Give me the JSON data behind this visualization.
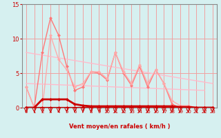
{
  "bg_color": "#d6f0f0",
  "grid_color": "#f0a0a0",
  "xlabel": "Vent moyen/en rafales ( km/h )",
  "xlim": [
    -0.5,
    23.5
  ],
  "ylim": [
    0,
    15
  ],
  "yticks": [
    0,
    5,
    10,
    15
  ],
  "xticks": [
    0,
    1,
    2,
    3,
    4,
    5,
    6,
    7,
    8,
    9,
    10,
    11,
    12,
    13,
    14,
    15,
    16,
    17,
    18,
    19,
    20,
    21,
    22,
    23
  ],
  "line_diag1": {
    "x": [
      0,
      23
    ],
    "y": [
      8.0,
      3.5
    ],
    "color": "#ffbbcc",
    "lw": 1.0
  },
  "line_diag2": {
    "x": [
      0,
      22
    ],
    "y": [
      3.5,
      2.5
    ],
    "color": "#ffbbcc",
    "lw": 1.0
  },
  "line_pink_zigzag": {
    "x": [
      0,
      1,
      2,
      3,
      4,
      5,
      6,
      7,
      8,
      9,
      10,
      11,
      12,
      13,
      14,
      15,
      16,
      17,
      18,
      19,
      20,
      21,
      22,
      23
    ],
    "y": [
      3.0,
      0,
      0,
      10.5,
      7,
      5.5,
      3.0,
      3.5,
      5.2,
      5.2,
      4.2,
      8.0,
      5.2,
      3.5,
      6.2,
      3.5,
      5.5,
      3.5,
      1.0,
      0.3,
      0.3,
      0,
      0,
      0
    ],
    "color": "#ffaaaa",
    "lw": 1.0,
    "ms": 2.5
  },
  "line_salmon_zigzag": {
    "x": [
      0,
      1,
      2,
      3,
      4,
      5,
      6,
      7,
      8,
      9,
      10,
      11,
      12,
      13,
      14,
      15,
      16,
      17,
      18,
      19,
      20,
      21,
      22,
      23
    ],
    "y": [
      3.0,
      0,
      8.0,
      13.0,
      10.5,
      6.0,
      2.5,
      3.0,
      5.2,
      5.0,
      4.0,
      8.0,
      5.0,
      3.2,
      6.0,
      3.0,
      5.5,
      3.5,
      0.5,
      0,
      0,
      0,
      0,
      0
    ],
    "color": "#ff7777",
    "lw": 1.0,
    "ms": 2.5
  },
  "line_darkred_top": {
    "x": [
      0,
      1,
      2,
      3,
      4,
      5,
      6,
      7,
      8,
      9,
      10,
      11,
      12,
      13,
      14,
      15,
      16,
      17,
      18,
      19,
      20,
      21,
      22,
      23
    ],
    "y": [
      0,
      0,
      1.2,
      1.2,
      1.2,
      1.2,
      0.5,
      0.3,
      0.2,
      0.2,
      0.2,
      0.2,
      0.2,
      0.2,
      0.2,
      0.2,
      0.2,
      0.2,
      0.2,
      0.1,
      0.1,
      0,
      0,
      0
    ],
    "color": "#cc0000",
    "lw": 2.0,
    "ms": 2.5
  },
  "line_darkred_bottom": {
    "x": [
      0,
      1,
      2,
      3,
      4,
      5,
      6,
      7,
      8,
      9,
      10,
      11,
      12,
      13,
      14,
      15,
      16,
      17,
      18,
      19,
      20,
      21,
      22,
      23
    ],
    "y": [
      0,
      0,
      0,
      0,
      0,
      0,
      0,
      0,
      0,
      0,
      0,
      0,
      0,
      0,
      0,
      0,
      0,
      0,
      0,
      0,
      0,
      0,
      0,
      0
    ],
    "color": "#cc0000",
    "lw": 1.5,
    "ms": 2.5
  },
  "arrow_color": "#cc0000",
  "xlabel_color": "#cc0000",
  "tick_color": "#cc0000",
  "axis_color": "#888888"
}
